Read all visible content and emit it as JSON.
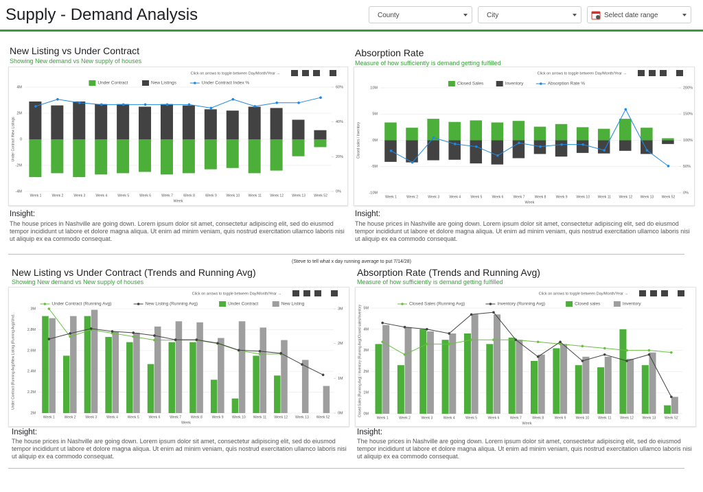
{
  "header": {
    "title": "Supply - Demand Analysis",
    "filters": [
      "County",
      "City",
      "Select date range"
    ]
  },
  "note": "(Steve to tell what x day running average to put 7/14/28)",
  "insights": [
    {
      "label": "Insight:",
      "text": "The house prices in Nashville are going down. Lorem ipsum dolor sit amet, consectetur adipiscing elit, sed do eiusmod tempor incididunt ut labore et dolore magna aliqua. Ut enim ad minim veniam, quis nostrud exercitation ullamco laboris nisi ut aliquip ex ea commodo consequat."
    },
    {
      "label": "Insight:",
      "text": "The house prices in Nashville are going down. Lorem ipsum dolor sit amet, consectetur adipiscing elit, sed do eiusmod tempor incididunt ut labore et dolore magna aliqua. Ut enim ad minim veniam, quis nostrud exercitation ullamco laboris nisi ut aliquip ex ea commodo consequat."
    },
    {
      "label": "Insight:",
      "text": "The house prices in Nashville are going down. Lorem ipsum dolor sit amet, consectetur adipiscing elit, sed do eiusmod tempor incididunt ut labore et dolore magna aliqua. Ut enim ad minim veniam, quis nostrud exercitation ullamco laboris nisi ut aliquip ex ea commodo consequat."
    },
    {
      "label": "Insight:",
      "text": "The house prices in Nashville are going down. Lorem ipsum dolor sit amet, consectetur adipiscing elit, sed do eiusmod tempor incididunt ut labore et dolore magna aliqua. Ut enim ad minim veniam, quis nostrud exercitation ullamco laboris nisi ut aliquip ex ea commodo consequat."
    }
  ],
  "chart_data": [
    {
      "type": "combo",
      "bar_mode": "overlay",
      "grid": true,
      "title": "New Listing vs Under Contract",
      "subtitle": "Showing New demand vs New supply of houses",
      "hint": "Click on arrows to toggle between Day/Month/Year →",
      "x_label": "Week",
      "y_label": "Under Contract /New Listings",
      "categories": [
        "Week 1",
        "Week 2",
        "Week 3",
        "Week 4",
        "Week 5",
        "Week 6",
        "Week 7",
        "Week 8",
        "Week 9",
        "Week 10",
        "Week 11",
        "Week 12",
        "Week 13",
        "Week 52"
      ],
      "ylim": [
        -4,
        4
      ],
      "yticks": [
        {
          "value": -4,
          "label": "-4M"
        },
        {
          "value": -2,
          "label": "-2M"
        },
        0,
        {
          "value": 2,
          "label": "2M"
        },
        {
          "value": 4,
          "label": "4M"
        }
      ],
      "y2lim": [
        0,
        60
      ],
      "y2ticks": [
        {
          "value": 0,
          "label": "0%"
        },
        {
          "value": 20,
          "label": "20%"
        },
        {
          "value": 40,
          "label": "40%"
        },
        {
          "value": 60,
          "label": "60%"
        }
      ],
      "series": [
        {
          "name": "Under Contract",
          "mark": "bar",
          "color": "#4caf3a",
          "values": [
            -2.9,
            -2.6,
            -2.9,
            -2.7,
            -2.6,
            -2.5,
            -2.7,
            -2.6,
            -2.3,
            -2.2,
            -2.6,
            -2.4,
            -1.3,
            -0.6
          ]
        },
        {
          "name": "New Listings",
          "mark": "bar",
          "color": "#424242",
          "values": [
            2.9,
            2.6,
            2.9,
            2.7,
            2.7,
            2.5,
            2.7,
            2.6,
            2.3,
            2.2,
            2.5,
            2.4,
            1.5,
            0.7
          ]
        },
        {
          "name": "Under Contract Index %",
          "mark": "line",
          "axis": "y2",
          "color": "#1e88e5",
          "values": [
            49,
            53,
            51,
            50,
            50,
            50,
            50,
            50,
            48,
            53,
            49,
            51,
            51,
            54
          ]
        }
      ]
    },
    {
      "type": "combo",
      "bar_mode": "overlay",
      "grid": true,
      "title": "Absorption Rate",
      "subtitle": "Measure of how sufficiently is demand getting fulfilled",
      "hint": "Click on arrows to toggle between Day/Month/Year →",
      "x_label": "Week",
      "y_label": "Closed sales / Inventory",
      "categories": [
        "Week 1",
        "Week 2",
        "Week 3",
        "Week 4",
        "Week 5",
        "Week 6",
        "Week 7",
        "Week 8",
        "Week 9",
        "Week 10",
        "Week 11",
        "Week 12",
        "Week 13",
        "Week 52"
      ],
      "ylim": [
        -10,
        10
      ],
      "yticks": [
        {
          "value": -10,
          "label": "-10M"
        },
        {
          "value": -5,
          "label": "-5M"
        },
        {
          "value": 0,
          "label": "0M"
        },
        {
          "value": 5,
          "label": "5M"
        },
        {
          "value": 10,
          "label": "10M"
        }
      ],
      "y2lim": [
        0,
        200
      ],
      "y2ticks": [
        {
          "value": 0,
          "label": "0%"
        },
        {
          "value": 50,
          "label": "50%"
        },
        {
          "value": 100,
          "label": "100%"
        },
        {
          "value": 150,
          "label": "150%"
        },
        {
          "value": 200,
          "label": "200%"
        }
      ],
      "series": [
        {
          "name": "Closed Sales",
          "mark": "bar",
          "color": "#4caf3a",
          "values": [
            3.4,
            2.4,
            4.1,
            3.5,
            3.8,
            3.4,
            3.7,
            2.6,
            3.1,
            2.5,
            2.2,
            4.1,
            2.4,
            0.4
          ]
        },
        {
          "name": "Inventory",
          "mark": "bar",
          "color": "#424242",
          "values": [
            -4.1,
            -4.2,
            -3.8,
            -3.7,
            -4.4,
            -4.6,
            -3.4,
            -2.6,
            -3.1,
            -2.4,
            -2.5,
            -2.0,
            -2.6,
            -0.7
          ]
        },
        {
          "name": "Absorption Rate %",
          "mark": "line",
          "axis": "y2",
          "color": "#1e88e5",
          "values": [
            80,
            58,
            105,
            93,
            88,
            71,
            95,
            88,
            92,
            92,
            81,
            159,
            81,
            51
          ]
        }
      ]
    },
    {
      "type": "combo",
      "bar_mode": "group",
      "grid": true,
      "title": "New Listing vs Under Contract (Trends and Running Avg)",
      "subtitle": "Showing New demand vs New supply of houses",
      "hint": "Click on arrows to toggle between Day/Month/Year →",
      "x_label": "Week",
      "y_label": "Under Contract (Running Avg)/New Listing (Running Avg)/Und...",
      "categories": [
        "Week 1",
        "Week 2",
        "Week 3",
        "Week 4",
        "Week 5",
        "Week 6",
        "Week 7",
        "Week 8",
        "Week 9",
        "Week 10",
        "Week 11",
        "Week 12",
        "Week 13",
        "Week 52"
      ],
      "ylim": [
        2,
        3
      ],
      "yticks": [
        {
          "value": 2,
          "label": "2M"
        },
        {
          "value": 2.2,
          "label": "2.2M"
        },
        {
          "value": 2.4,
          "label": "2.4M"
        },
        {
          "value": 2.6,
          "label": "2.6M"
        },
        {
          "value": 2.8,
          "label": "2.8M"
        },
        {
          "value": 3,
          "label": "3M"
        }
      ],
      "y2lim": [
        0,
        3
      ],
      "y2ticks": [
        {
          "value": 0,
          "label": "0M"
        },
        {
          "value": 1,
          "label": "1M"
        },
        {
          "value": 2,
          "label": "2M"
        },
        {
          "value": 3,
          "label": "3M"
        }
      ],
      "series": [
        {
          "name": "Under Contract (Running Avg)",
          "mark": "line",
          "axis": "y2",
          "color": "#6abf40",
          "values": [
            3.0,
            2.2,
            2.4,
            2.3,
            2.2,
            2.1,
            2.1,
            2.1,
            2.0,
            1.8,
            1.7,
            1.7,
            null,
            null
          ]
        },
        {
          "name": "New Listing (Running Avg)",
          "mark": "line",
          "axis": "y2",
          "color": "#424242",
          "values": [
            2.13,
            2.29,
            2.43,
            2.35,
            2.31,
            2.23,
            2.11,
            2.11,
            2.01,
            1.81,
            1.78,
            1.72,
            1.4,
            1.1
          ]
        },
        {
          "name": "Under Contract",
          "mark": "bar",
          "color": "#4caf3a",
          "values": [
            2.93,
            2.55,
            2.93,
            2.73,
            2.68,
            2.47,
            2.68,
            2.68,
            2.32,
            2.14,
            2.55,
            2.36,
            null,
            null
          ]
        },
        {
          "name": "New Listing",
          "mark": "bar",
          "color": "#9e9e9e",
          "values": [
            2.91,
            2.93,
            2.99,
            2.78,
            2.77,
            2.83,
            2.88,
            2.87,
            2.72,
            2.88,
            2.82,
            2.7,
            2.51,
            2.26
          ]
        }
      ]
    },
    {
      "type": "combo",
      "bar_mode": "group",
      "grid": true,
      "title": "Absorption Rate (Trends and Running Avg)",
      "subtitle": "Measure of how sufficiently is demand getting fulfilled",
      "hint": "Click on arrows to toggle between Day/Month/Year →",
      "x_label": "Week",
      "y_label": "Closed Sales (Running Avg) / Inventory (Running Avg)/Closed sales/Inventory",
      "categories": [
        "Week 1",
        "Week 2",
        "Week 3",
        "Week 4",
        "Week 5",
        "Week 6",
        "Week 7",
        "Week 8",
        "Week 9",
        "Week 10",
        "Week 11",
        "Week 12",
        "Week 13",
        "Week 52"
      ],
      "ylim": [
        0,
        5
      ],
      "yticks": [
        {
          "value": 0,
          "label": "0M"
        },
        {
          "value": 1,
          "label": "1M"
        },
        {
          "value": 2,
          "label": "2M"
        },
        {
          "value": 3,
          "label": "3M"
        },
        {
          "value": 4,
          "label": "4M"
        },
        {
          "value": 5,
          "label": "5M"
        }
      ],
      "series": [
        {
          "name": "Closed Sales (Running Avg)",
          "mark": "line",
          "color": "#6abf40",
          "values": [
            3.4,
            2.8,
            3.3,
            3.3,
            3.5,
            3.5,
            3.5,
            3.4,
            3.3,
            3.2,
            3.1,
            3.0,
            3.0,
            2.9
          ]
        },
        {
          "name": "Inventory (Running Avg)",
          "mark": "line",
          "color": "#424242",
          "values": [
            4.3,
            4.1,
            4.0,
            3.8,
            4.7,
            4.8,
            3.5,
            2.7,
            3.4,
            2.5,
            2.8,
            2.5,
            2.8,
            0.8
          ]
        },
        {
          "name": "Closed sales",
          "mark": "bar",
          "color": "#4caf3a",
          "values": [
            3.3,
            2.3,
            4.0,
            3.5,
            3.8,
            3.3,
            3.6,
            2.5,
            3.1,
            2.3,
            2.2,
            4.0,
            2.3,
            0.4
          ]
        },
        {
          "name": "Inventory",
          "mark": "bar",
          "color": "#9e9e9e",
          "values": [
            4.2,
            4.1,
            3.9,
            3.8,
            4.7,
            4.7,
            3.5,
            2.8,
            3.3,
            2.7,
            2.7,
            2.6,
            2.9,
            0.8
          ]
        }
      ]
    }
  ]
}
